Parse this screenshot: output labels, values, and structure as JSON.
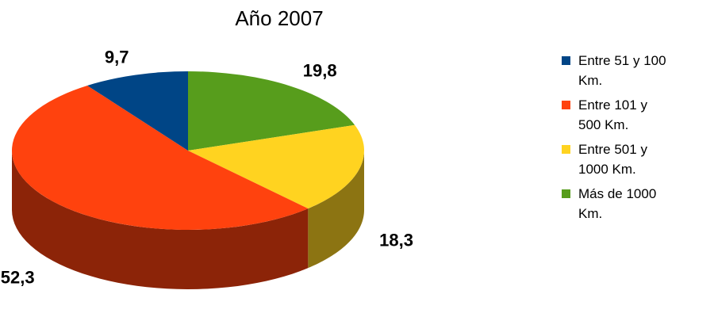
{
  "chart_data": {
    "type": "pie",
    "title": "Año 2007",
    "series": [
      {
        "name": "Entre 51 y 100 Km.",
        "color": "#004586",
        "values": [
          9.7
        ],
        "value_labels": [
          "9,7"
        ]
      },
      {
        "name": "Entre 101 y 500 Km.",
        "color": "#ff420e",
        "values": [
          52.3
        ],
        "value_labels": [
          "52,3"
        ]
      },
      {
        "name": "Entre 501 y 1000 Km.",
        "color": "#ffd320",
        "values": [
          18.3
        ],
        "value_labels": [
          "18,3"
        ]
      },
      {
        "name": "Más de 1000 Km.",
        "color": "#579d1c",
        "values": [
          19.8
        ],
        "value_labels": [
          "19,8"
        ]
      }
    ],
    "legend": "right"
  }
}
